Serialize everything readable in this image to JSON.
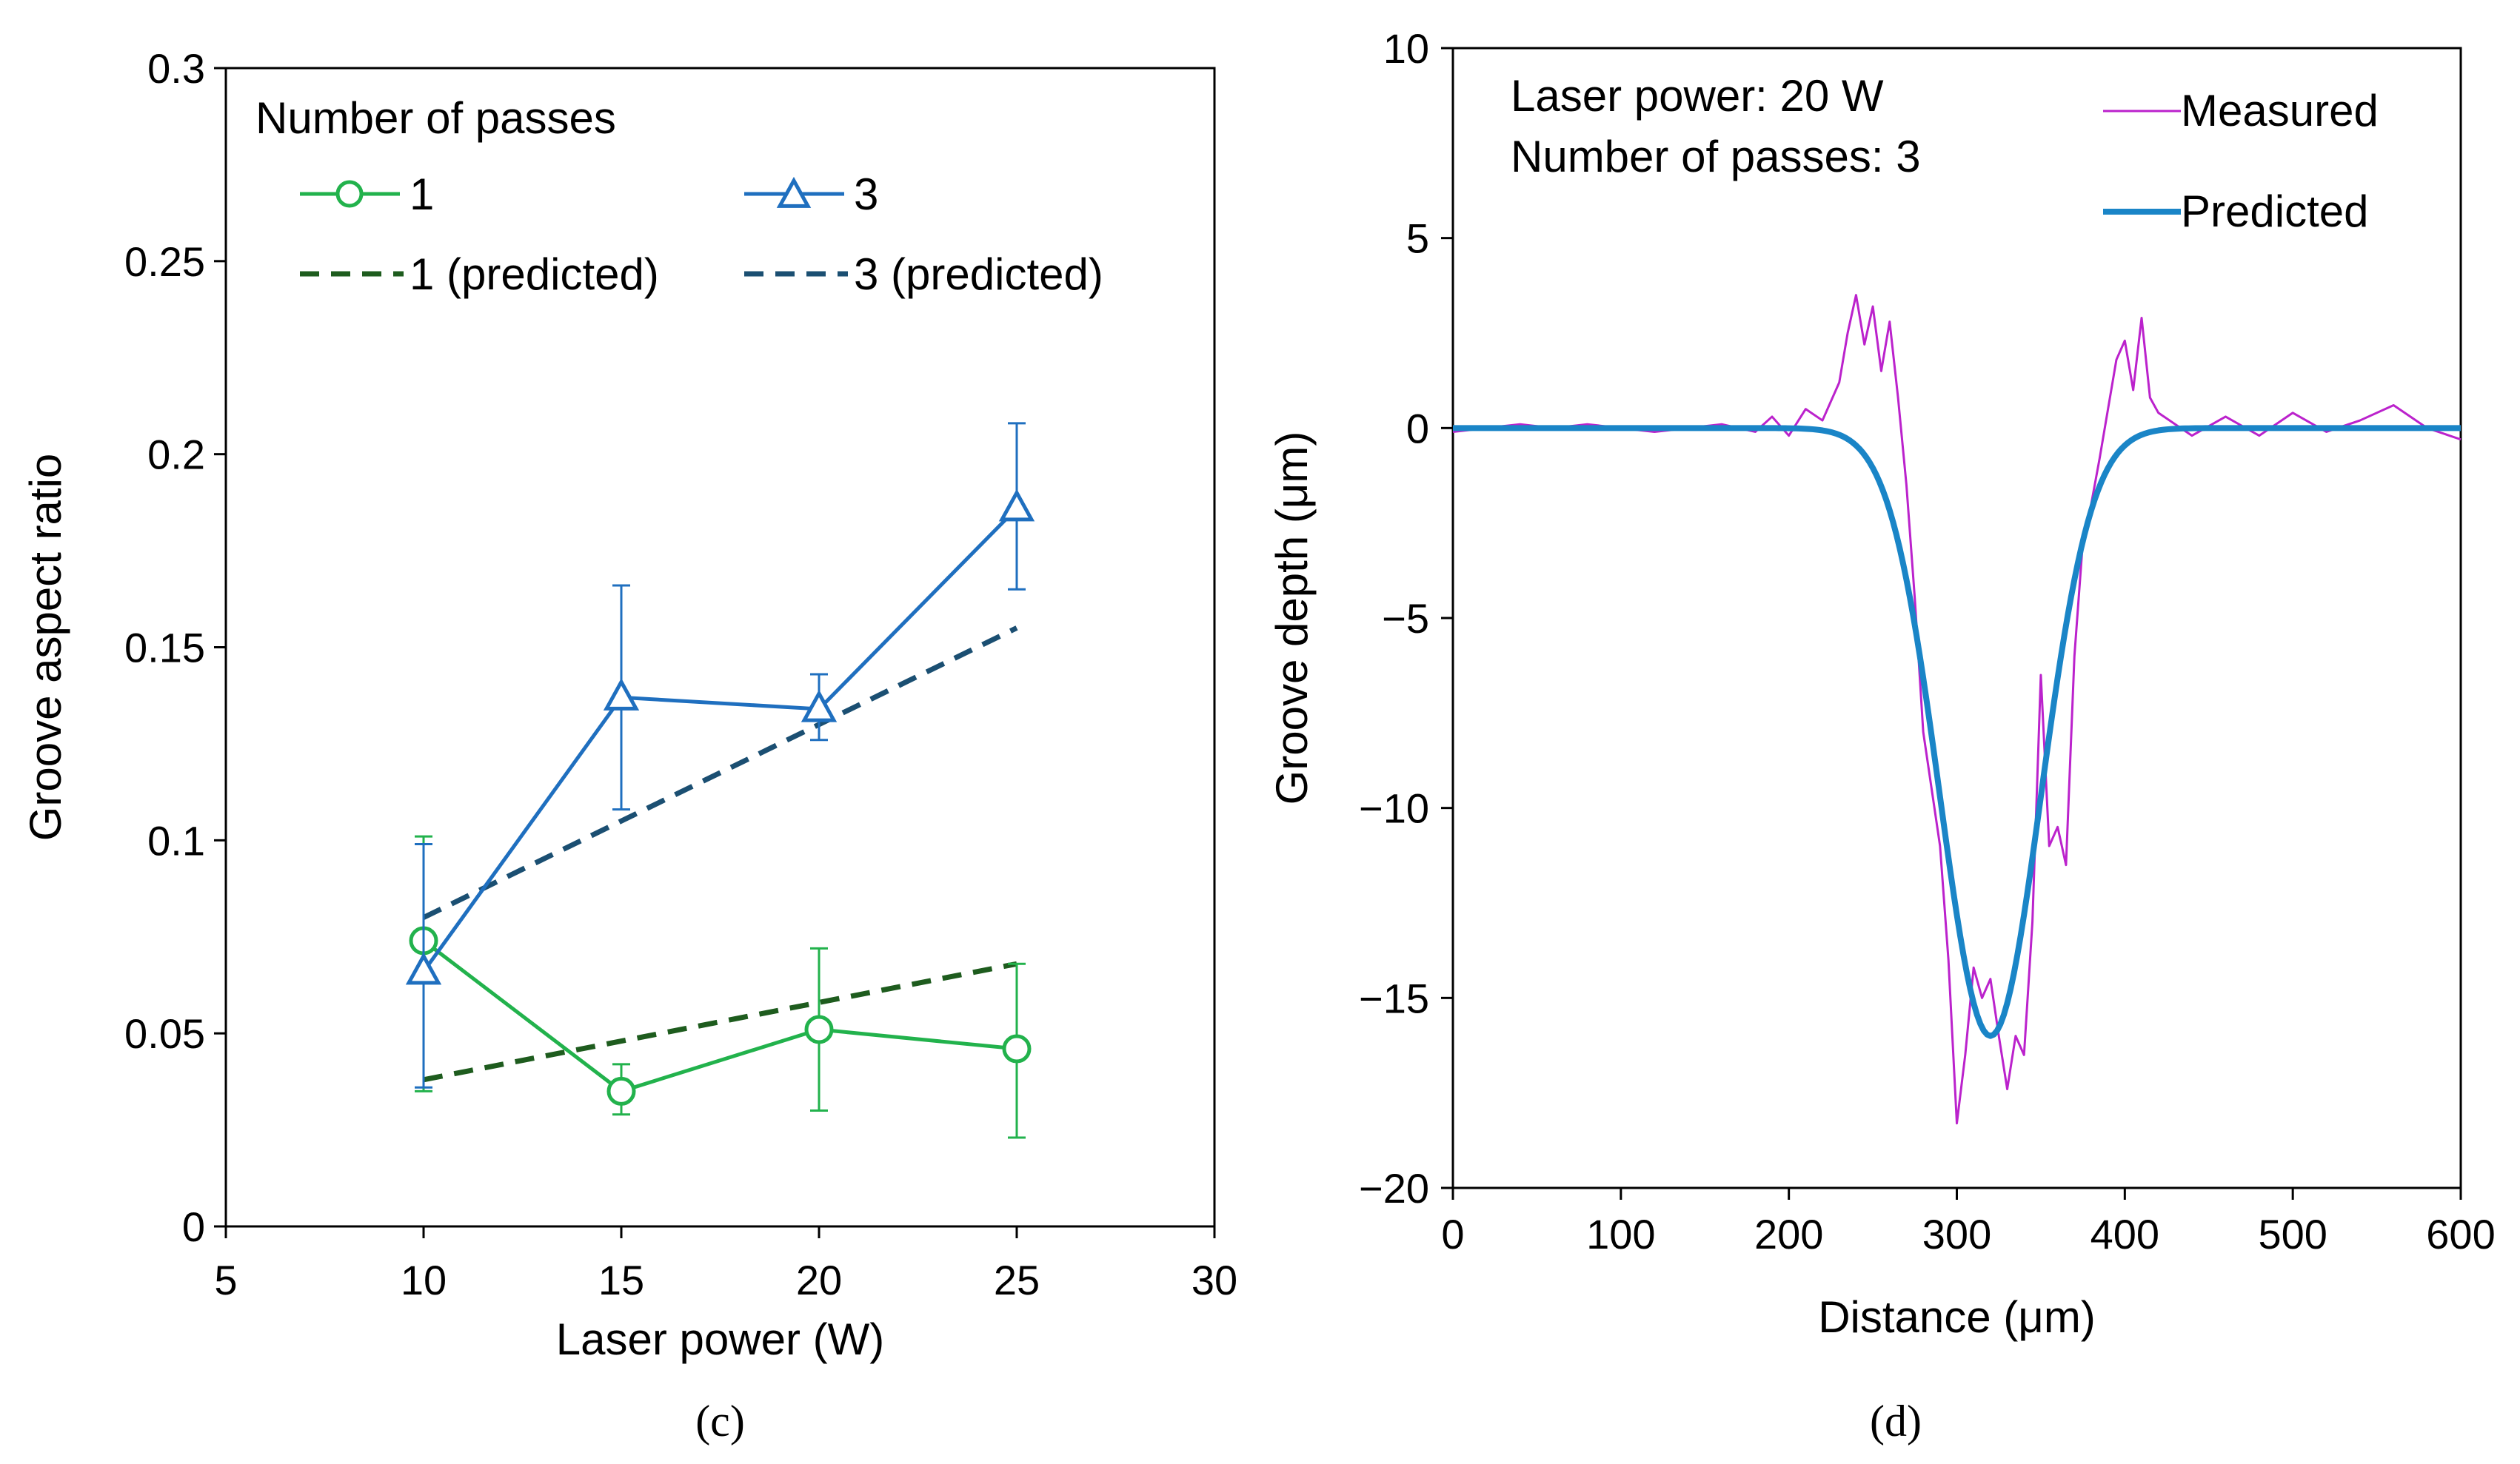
{
  "chart_data": [
    {
      "type": "line",
      "title": "",
      "xlabel": "Laser power (W)",
      "ylabel": "Groove aspect ratio",
      "xlim": [
        5,
        30
      ],
      "ylim": [
        0,
        0.3
      ],
      "x_ticks": [
        "5",
        "10",
        "15",
        "20",
        "25",
        "30"
      ],
      "y_ticks": [
        "0",
        "0.05",
        "0.1",
        "0.15",
        "0.2",
        "0.25",
        "0.3"
      ],
      "legend_title": "Number of passes",
      "legend_position": "top-left",
      "series": [
        {
          "name": "1",
          "color": "#22b24c",
          "marker": "circle",
          "style": "solid",
          "x": [
            10,
            15,
            20,
            25
          ],
          "values": [
            0.074,
            0.035,
            0.051,
            0.046
          ],
          "err_low": [
            0.035,
            0.029,
            0.03,
            0.023
          ],
          "err_high": [
            0.101,
            0.042,
            0.072,
            0.068
          ]
        },
        {
          "name": "3",
          "color": "#1f6fbf",
          "marker": "triangle",
          "style": "solid",
          "x": [
            10,
            15,
            20,
            25
          ],
          "values": [
            0.066,
            0.137,
            0.134,
            0.186
          ],
          "err_low": [
            0.036,
            0.108,
            0.126,
            0.165
          ],
          "err_high": [
            0.099,
            0.166,
            0.143,
            0.208
          ]
        },
        {
          "name": "1 (predicted)",
          "color": "#1e5c1e",
          "style": "dashed",
          "x": [
            10,
            25
          ],
          "values": [
            0.038,
            0.068
          ]
        },
        {
          "name": "3 (predicted)",
          "color": "#1b4f72",
          "style": "dashed",
          "x": [
            10,
            25
          ],
          "values": [
            0.08,
            0.155
          ]
        }
      ],
      "caption": "(c)"
    },
    {
      "type": "line",
      "title": "",
      "xlabel": "Distance (μm)",
      "ylabel": "Groove depth (μm)",
      "xlim": [
        0,
        600
      ],
      "ylim": [
        -20,
        10
      ],
      "x_ticks": [
        "0",
        "100",
        "200",
        "300",
        "400",
        "500",
        "600"
      ],
      "y_ticks": [
        "−20",
        "−15",
        "−10",
        "−5",
        "0",
        "5",
        "10"
      ],
      "annotations": [
        "Laser power: 20 W",
        "Number of passes: 3"
      ],
      "legend_position": "top-right",
      "series": [
        {
          "name": "Measured",
          "color": "#bb22cc",
          "style": "solid",
          "x": [
            0,
            20,
            40,
            60,
            80,
            100,
            120,
            140,
            160,
            180,
            190,
            200,
            210,
            220,
            230,
            235,
            240,
            245,
            250,
            255,
            260,
            265,
            270,
            275,
            280,
            285,
            290,
            295,
            300,
            305,
            310,
            315,
            320,
            325,
            330,
            335,
            340,
            345,
            350,
            355,
            360,
            365,
            370,
            375,
            380,
            385,
            390,
            395,
            400,
            405,
            410,
            415,
            420,
            430,
            440,
            460,
            480,
            500,
            520,
            540,
            560,
            580,
            600
          ],
          "values": [
            -0.1,
            0.0,
            0.1,
            0.0,
            0.1,
            0.0,
            -0.1,
            0.0,
            0.1,
            -0.1,
            0.3,
            -0.2,
            0.5,
            0.2,
            1.2,
            2.5,
            3.5,
            2.2,
            3.2,
            1.5,
            2.8,
            0.8,
            -1.5,
            -4.5,
            -8.0,
            -9.5,
            -11.0,
            -14.0,
            -18.3,
            -16.5,
            -14.2,
            -15.0,
            -14.5,
            -16.0,
            -17.4,
            -16.0,
            -16.5,
            -13.0,
            -6.5,
            -11.0,
            -10.5,
            -11.5,
            -6.0,
            -3.0,
            -2.0,
            -0.8,
            0.5,
            1.8,
            2.3,
            1.0,
            2.9,
            0.8,
            0.4,
            0.1,
            -0.2,
            0.3,
            -0.2,
            0.4,
            -0.1,
            0.2,
            0.6,
            0.0,
            -0.3
          ]
        },
        {
          "name": "Predicted",
          "color": "#1a85c7",
          "style": "solid",
          "gaussian": {
            "center": 320,
            "depth": -16.0,
            "sigma": 30
          }
        }
      ],
      "caption": "(d)"
    }
  ]
}
